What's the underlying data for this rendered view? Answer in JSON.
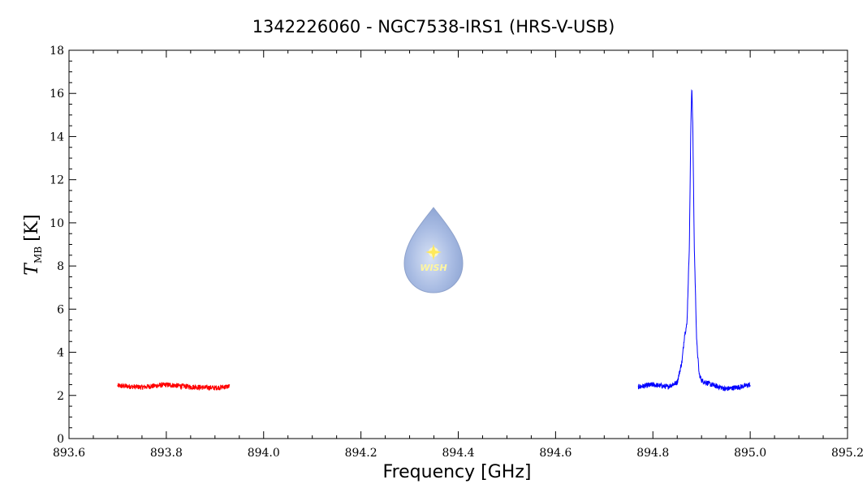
{
  "chart_data": {
    "type": "line",
    "title": "1342226060 - NGC7538-IRS1 (HRS-V-USB)",
    "xlabel": "Frequency [GHz]",
    "ylabel": {
      "symbol": "T",
      "subscript": "MB",
      "unit": "[K]"
    },
    "xlim": [
      893.6,
      895.2
    ],
    "ylim": [
      0,
      18
    ],
    "x_ticks": [
      893.6,
      893.8,
      894.0,
      894.2,
      894.4,
      894.6,
      894.8,
      895.0,
      895.2
    ],
    "x_tick_labels": [
      "893.6",
      "893.8",
      "894.0",
      "894.2",
      "894.4",
      "894.6",
      "894.8",
      "895.0",
      "895.2"
    ],
    "y_ticks": [
      0,
      2,
      4,
      6,
      8,
      10,
      12,
      14,
      16,
      18
    ],
    "y_tick_labels": [
      "0",
      "2",
      "4",
      "6",
      "8",
      "10",
      "12",
      "14",
      "16",
      "18"
    ],
    "grid": false,
    "series": [
      {
        "color": "#ff0000",
        "x_range": [
          893.7,
          893.93
        ],
        "baseline": 2.4,
        "noise": 0.12,
        "points": [
          [
            893.7,
            2.45
          ],
          [
            893.75,
            2.38
          ],
          [
            893.8,
            2.5
          ],
          [
            893.85,
            2.4
          ],
          [
            893.9,
            2.35
          ],
          [
            893.93,
            2.42
          ]
        ]
      },
      {
        "color": "#0000ff",
        "x_range": [
          894.77,
          895.0
        ],
        "baseline": 2.4,
        "noise": 0.12,
        "points": [
          [
            894.77,
            2.4
          ],
          [
            894.8,
            2.5
          ],
          [
            894.83,
            2.4
          ],
          [
            894.85,
            2.6
          ],
          [
            894.86,
            3.6
          ],
          [
            894.865,
            4.8
          ],
          [
            894.87,
            5.3
          ],
          [
            894.875,
            9.0
          ],
          [
            894.878,
            14.5
          ],
          [
            894.88,
            16.4
          ],
          [
            894.882,
            14.5
          ],
          [
            894.885,
            9.0
          ],
          [
            894.89,
            4.5
          ],
          [
            894.895,
            3.0
          ],
          [
            894.9,
            2.7
          ],
          [
            894.92,
            2.5
          ],
          [
            894.95,
            2.3
          ],
          [
            894.98,
            2.4
          ],
          [
            895.0,
            2.5
          ]
        ]
      }
    ]
  },
  "logo": {
    "text": "WISH",
    "icon": "star-icon",
    "color": "#9fb4dc"
  }
}
